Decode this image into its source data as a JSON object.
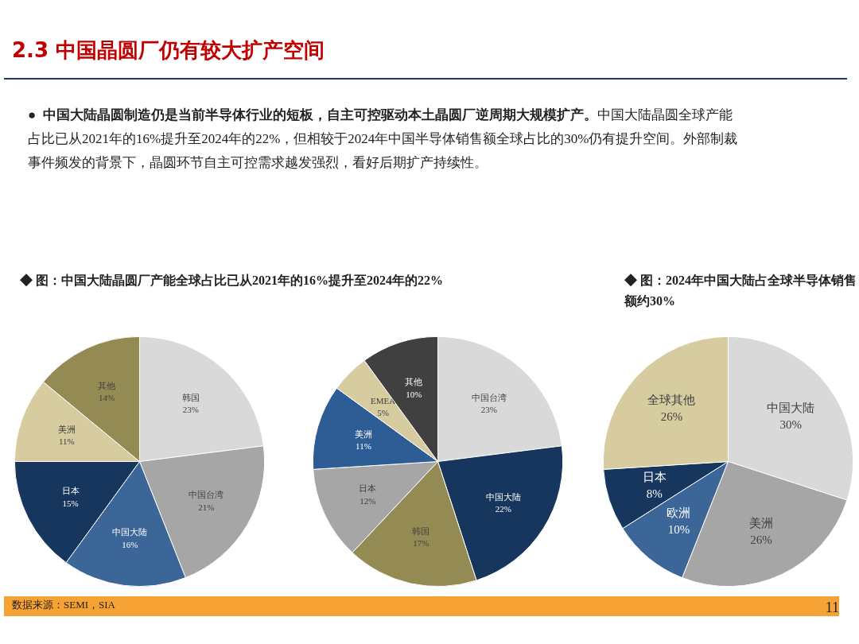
{
  "chart_data": [
    {
      "type": "pie",
      "title": "◆ 图：中国大陆晶圆厂产能全球占比已从2021年的16%提升至2024年的22%",
      "annotations": [
        "2.3 中国晶圆厂仍有较大扩产空间",
        "●",
        "中国大陆晶圆制造仍是当前半导体行业的短板，自主可控驱动本土晶圆厂逆周期大规模扩产。",
        "中国大陆晶圆全球产能占比已从2021年的16%提升至2024年的22%，但相较于2024年中国半导体销售额全球占比的30%仍有提升空间。外部制裁事件频发的背景下，晶圆环节自主可控需求越发强烈，看好后期扩产持续性。",
        "数据来源：SEMI，SIA",
        "11"
      ],
      "categories": [
        "韩国",
        "中国台湾",
        "中国大陆",
        "日本",
        "美洲",
        "其他"
      ],
      "values": [
        23,
        21,
        16,
        15,
        11,
        14
      ],
      "value_labels": [
        "23%",
        "21%",
        "16%",
        "15%",
        "11%",
        "14%"
      ],
      "colors": [
        "#d9d9d9",
        "#a6a6a6",
        "#3c6598",
        "#17365d",
        "#d6cca0",
        "#948a54"
      ]
    },
    {
      "type": "pie",
      "categories": [
        "中国台湾",
        "中国大陆",
        "韩国",
        "日本",
        "美洲",
        "EMEA",
        "其他"
      ],
      "values": [
        23,
        22,
        17,
        12,
        11,
        5,
        10
      ],
      "value_labels": [
        "23%",
        "22%",
        "17%",
        "12%",
        "11%",
        "5%",
        "10%"
      ],
      "colors": [
        "#d9d9d9",
        "#17365d",
        "#948a54",
        "#a6a6a6",
        "#2e5d96",
        "#d6cca0",
        "#404040"
      ]
    },
    {
      "type": "pie",
      "title": "◆ 图：2024年中国大陆占全球半导体销售额约30%",
      "categories": [
        "中国大陆",
        "美洲",
        "欧洲",
        "日本",
        "全球其他"
      ],
      "values": [
        30,
        26,
        10,
        8,
        26
      ],
      "value_labels": [
        "30%",
        "26%",
        "10%",
        "8%",
        "26%"
      ],
      "colors": [
        "#d9d9d9",
        "#a6a6a6",
        "#3c6598",
        "#17365d",
        "#d6cca0"
      ]
    }
  ]
}
